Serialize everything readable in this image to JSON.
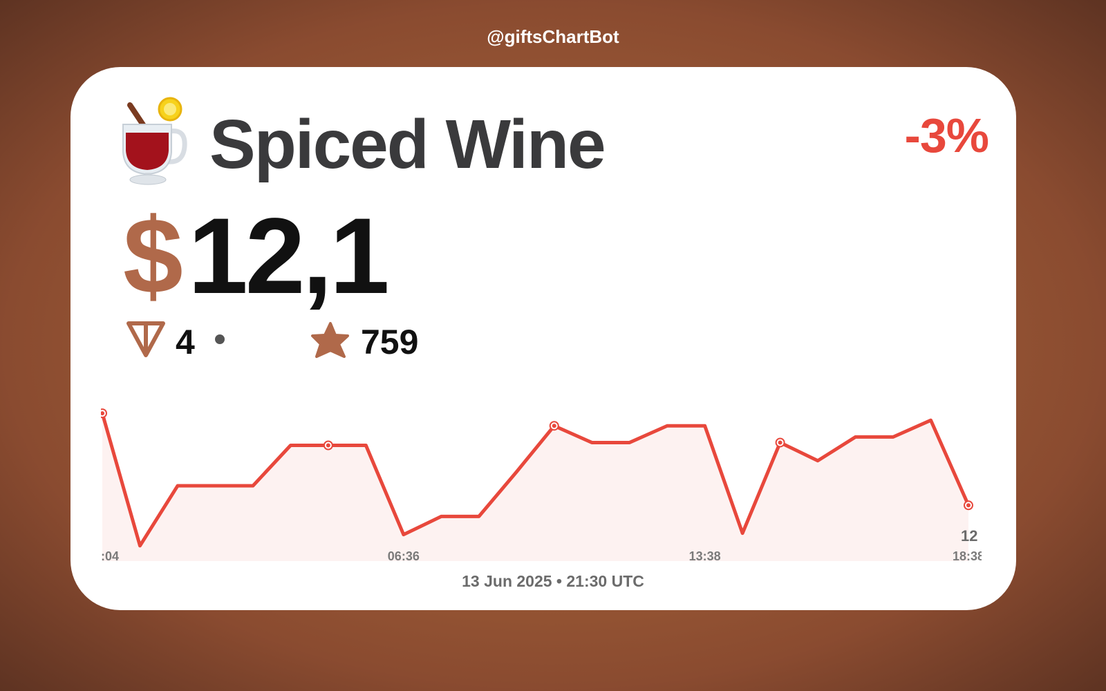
{
  "header": {
    "bot": "@giftsChartBot"
  },
  "gift": {
    "name": "Spiced Wine",
    "change": "-3%",
    "currency": "$",
    "price": "12,1",
    "ton": "4",
    "stars": "759"
  },
  "footer": {
    "date": "13 Jun 2025 • 21:30 UTC"
  },
  "chart_data": {
    "type": "line",
    "categories": [
      ":04",
      null,
      null,
      null,
      null,
      null,
      null,
      null,
      "06:36",
      null,
      null,
      null,
      null,
      null,
      null,
      null,
      "13:38",
      null,
      null,
      null,
      null,
      null,
      null,
      "18:38"
    ],
    "series": [
      {
        "color": "#e8483c",
        "values": [
          12.76,
          11.81,
          12.24,
          12.24,
          12.24,
          12.53,
          12.53,
          12.53,
          11.89,
          12.02,
          12.02,
          12.34,
          12.67,
          12.55,
          12.55,
          12.67,
          12.67,
          11.9,
          12.55,
          12.42,
          12.59,
          12.59,
          12.71,
          12.1
        ]
      }
    ],
    "annotation": "12",
    "ylim": [
      11.7,
      12.8
    ]
  }
}
